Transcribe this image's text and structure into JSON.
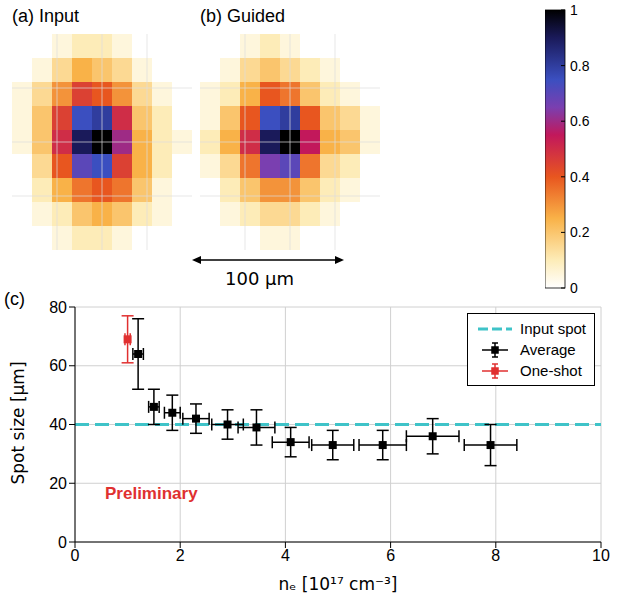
{
  "chart_data": [
    {
      "type": "heatmap",
      "colorbar_range": [
        0,
        1
      ],
      "colorbar_ticks": [
        0,
        0.2,
        0.4,
        0.6,
        0.8,
        1
      ],
      "panels": [
        {
          "title": "(a) Input",
          "cells": [
            [
              0,
              0,
              0.05,
              0.1,
              0.1,
              0.05,
              0,
              0,
              0
            ],
            [
              0,
              0.05,
              0.15,
              0.25,
              0.2,
              0.15,
              0.05,
              0,
              0
            ],
            [
              0.05,
              0.15,
              0.3,
              0.45,
              0.4,
              0.3,
              0.15,
              0.05,
              0
            ],
            [
              0.05,
              0.2,
              0.45,
              0.75,
              0.8,
              0.5,
              0.2,
              0.1,
              0
            ],
            [
              0.05,
              0.2,
              0.5,
              0.9,
              1,
              0.6,
              0.25,
              0.1,
              0.05
            ],
            [
              0,
              0.15,
              0.4,
              0.7,
              0.75,
              0.45,
              0.25,
              0.1,
              0
            ],
            [
              0,
              0.1,
              0.25,
              0.35,
              0.4,
              0.35,
              0.2,
              0.05,
              0
            ],
            [
              0,
              0.05,
              0.1,
              0.2,
              0.25,
              0.2,
              0.1,
              0.05,
              0
            ],
            [
              0,
              0,
              0.05,
              0.1,
              0.1,
              0.05,
              0,
              0,
              0
            ]
          ]
        },
        {
          "title": "(b) Guided",
          "scale_bar": "100 µm",
          "cells": [
            [
              0,
              0,
              0.05,
              0.1,
              0.05,
              0,
              0,
              0,
              0
            ],
            [
              0,
              0.05,
              0.15,
              0.2,
              0.15,
              0.1,
              0.05,
              0,
              0
            ],
            [
              0.05,
              0.1,
              0.25,
              0.4,
              0.35,
              0.2,
              0.1,
              0.05,
              0
            ],
            [
              0.05,
              0.2,
              0.4,
              0.75,
              0.8,
              0.4,
              0.2,
              0.15,
              0.05
            ],
            [
              0.1,
              0.25,
              0.5,
              0.9,
              1,
              0.55,
              0.25,
              0.2,
              0.05
            ],
            [
              0.05,
              0.15,
              0.35,
              0.65,
              0.7,
              0.35,
              0.15,
              0.1,
              0
            ],
            [
              0,
              0.1,
              0.2,
              0.3,
              0.3,
              0.2,
              0.1,
              0.05,
              0
            ],
            [
              0,
              0.05,
              0.1,
              0.15,
              0.15,
              0.1,
              0.05,
              0,
              0
            ],
            [
              0,
              0,
              0,
              0.05,
              0.05,
              0,
              0,
              0,
              0
            ]
          ]
        }
      ]
    },
    {
      "type": "scatter",
      "title": "(c)",
      "xlabel": "nₑ [10¹⁷ cm⁻³]",
      "ylabel": "Spot size [µm]",
      "annotation": "Preliminary",
      "xlim": [
        0,
        10
      ],
      "xticks": [
        0,
        2,
        4,
        6,
        8,
        10
      ],
      "ylim": [
        0,
        80
      ],
      "yticks": [
        0,
        20,
        40,
        60,
        80
      ],
      "grid": true,
      "legend": "upper right",
      "series": [
        {
          "name": "Input spot",
          "type": "hline",
          "color": "#3fc3c8",
          "line_style": "dashed",
          "y": 40
        },
        {
          "name": "Average",
          "color": "#000000",
          "marker": "square",
          "x": [
            1.2,
            1.5,
            1.85,
            2.3,
            2.9,
            3.45,
            4.1,
            4.9,
            5.85,
            6.8,
            7.9
          ],
          "values": [
            64,
            46,
            44,
            42,
            40,
            39,
            34,
            33,
            33,
            36,
            33
          ],
          "x_error": [
            0.1,
            0.1,
            0.15,
            0.25,
            0.3,
            0.35,
            0.35,
            0.4,
            0.45,
            0.5,
            0.5
          ],
          "y_error": [
            12,
            6,
            6,
            5,
            5,
            6,
            5,
            5,
            5,
            6,
            7
          ]
        },
        {
          "name": "One-shot",
          "color": "#e03030",
          "marker": "square",
          "x": [
            1.0
          ],
          "values": [
            69
          ],
          "x_error": [
            0.05
          ],
          "y_error": [
            8
          ]
        }
      ]
    }
  ]
}
